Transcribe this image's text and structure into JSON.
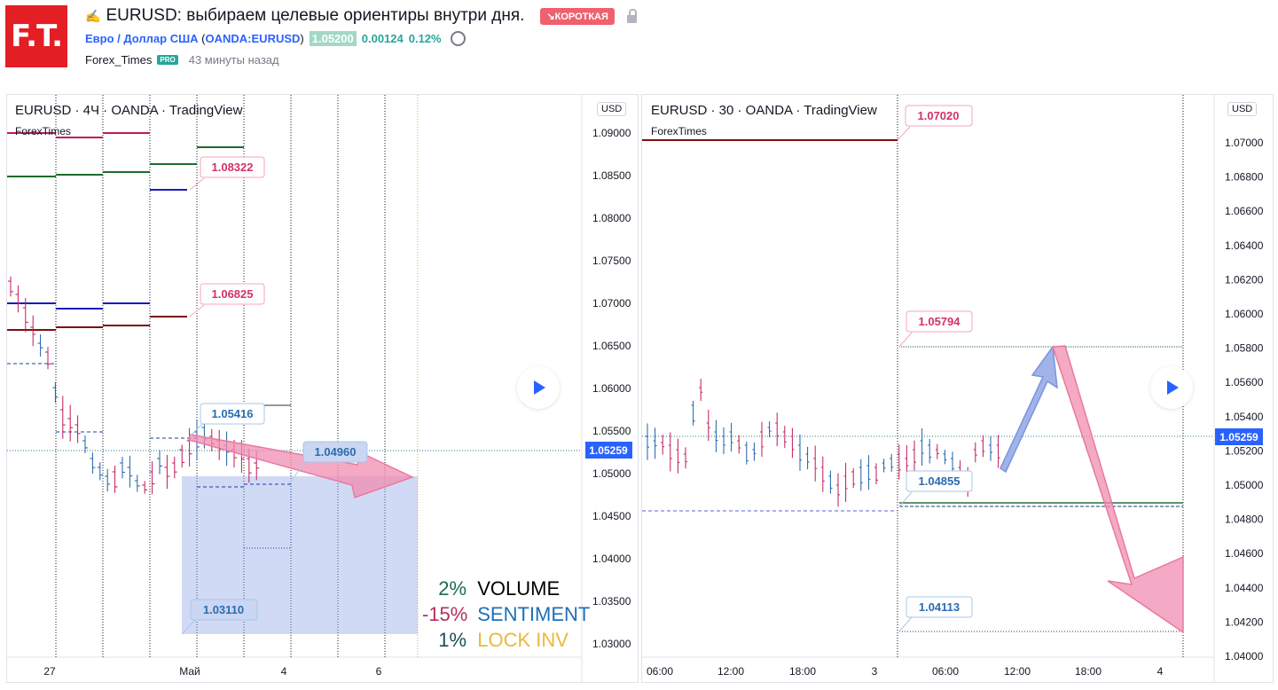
{
  "header": {
    "logo_text": "F.T.",
    "title": "EURUSD: выбираем целевые ориентиры внутри дня.",
    "badge": "↘КОРОТКАЯ",
    "symbol_name": "Евро / Доллар США",
    "symbol_code": "OANDA:EURUSD",
    "price": "1.05200",
    "change_abs": "0.00124",
    "change_pct": "0.12%",
    "author": "Forex_Times",
    "author_badge": "PRO",
    "published": "43 минуты назад"
  },
  "left_chart": {
    "legend": "EURUSD · 4Ч · OANDA · TradingView",
    "watermark": "ForexTimes",
    "currency": "USD",
    "price_ticks": [
      "1.09000",
      "1.08500",
      "1.08000",
      "1.07500",
      "1.07000",
      "1.06500",
      "1.06000",
      "1.05500",
      "1.05000",
      "1.04500",
      "1.04000",
      "1.03500",
      "1.03000"
    ],
    "last_price": "1.05259",
    "time_ticks": [
      "27",
      "Май",
      "4",
      "6"
    ],
    "callouts": [
      "1.08322",
      "1.06825",
      "1.05416",
      "1.04960",
      "1.03110"
    ],
    "stats": [
      {
        "pct": "2%",
        "label": "VOLUME",
        "pct_color": "#1b6b4f",
        "label_color": "#000000"
      },
      {
        "pct": "-15%",
        "label": "SENTIMENT",
        "pct_color": "#b0305e",
        "label_color": "#1e6fb8"
      },
      {
        "pct": "1%",
        "label": "LOCK INV",
        "pct_color": "#1b4f55",
        "label_color": "#e8b93c"
      }
    ]
  },
  "right_chart": {
    "legend": "EURUSD · 30 · OANDA · TradingView",
    "watermark": "ForexTimes",
    "currency": "USD",
    "price_ticks": [
      "1.07000",
      "1.06800",
      "1.06600",
      "1.06400",
      "1.06200",
      "1.06000",
      "1.05800",
      "1.05600",
      "1.05400",
      "1.05200",
      "1.05000",
      "1.04800",
      "1.04600",
      "1.04400",
      "1.04200",
      "1.04000"
    ],
    "last_price": "1.05259",
    "time_ticks": [
      "06:00",
      "12:00",
      "18:00",
      "3",
      "06:00",
      "12:00",
      "18:00",
      "4"
    ],
    "callouts": [
      "1.07020",
      "1.05794",
      "1.04855",
      "1.04113"
    ]
  },
  "colors": {
    "brand_red": "#e31e24",
    "accent_blue": "#2962ff",
    "up": "#26a69a",
    "short_badge": "#f0606d",
    "pink_candle": "#c2185b",
    "blue_candle": "#1e5fa8"
  }
}
